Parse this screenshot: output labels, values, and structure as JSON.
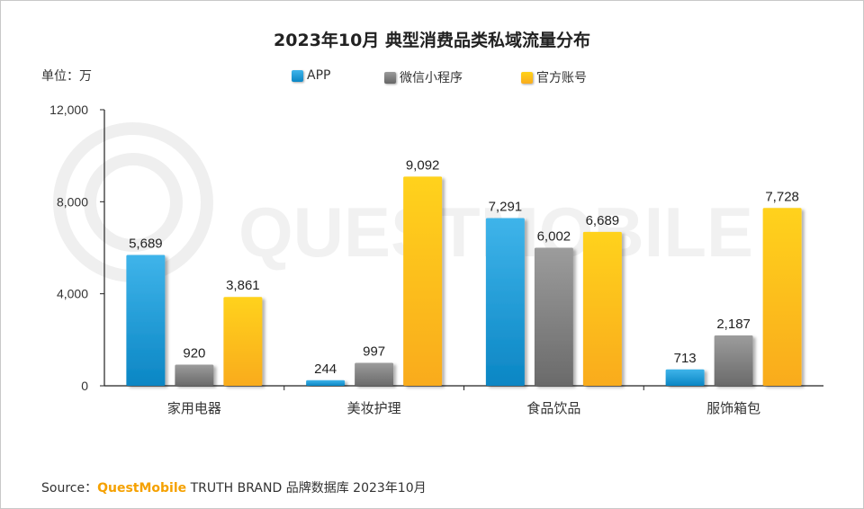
{
  "chart_data": {
    "type": "bar",
    "title": "2023年10月 典型消费品类私域流量分布",
    "unit_label": "单位：万",
    "categories": [
      "家用电器",
      "美妆护理",
      "食品饮品",
      "服饰箱包"
    ],
    "series": [
      {
        "name": "APP",
        "values": [
          5689,
          244,
          7291,
          713
        ],
        "color": "#1b9ad6"
      },
      {
        "name": "微信小程序",
        "values": [
          920,
          997,
          6002,
          2187
        ],
        "color": "#7f7f7f"
      },
      {
        "name": "官方账号",
        "values": [
          3861,
          9092,
          6689,
          7728
        ],
        "color": "#ffc000"
      }
    ],
    "data_labels": [
      [
        "5,689",
        "244",
        "7,291",
        "713"
      ],
      [
        "920",
        "997",
        "6,002",
        "2,187"
      ],
      [
        "3,861",
        "9,092",
        "6,689",
        "7,728"
      ]
    ],
    "yticks": [
      "0",
      "4,000",
      "8,000",
      "12,000"
    ],
    "ytick_values": [
      0,
      4000,
      8000,
      12000
    ],
    "ylim": [
      0,
      12000
    ],
    "grid": false,
    "legend_position": "top-center"
  },
  "source": {
    "prefix": "Source：",
    "brand": "QuestMobile",
    "text": " TRUTH BRAND 品牌数据库 2023年10月"
  },
  "watermark_text": "QUESTMOBILE"
}
